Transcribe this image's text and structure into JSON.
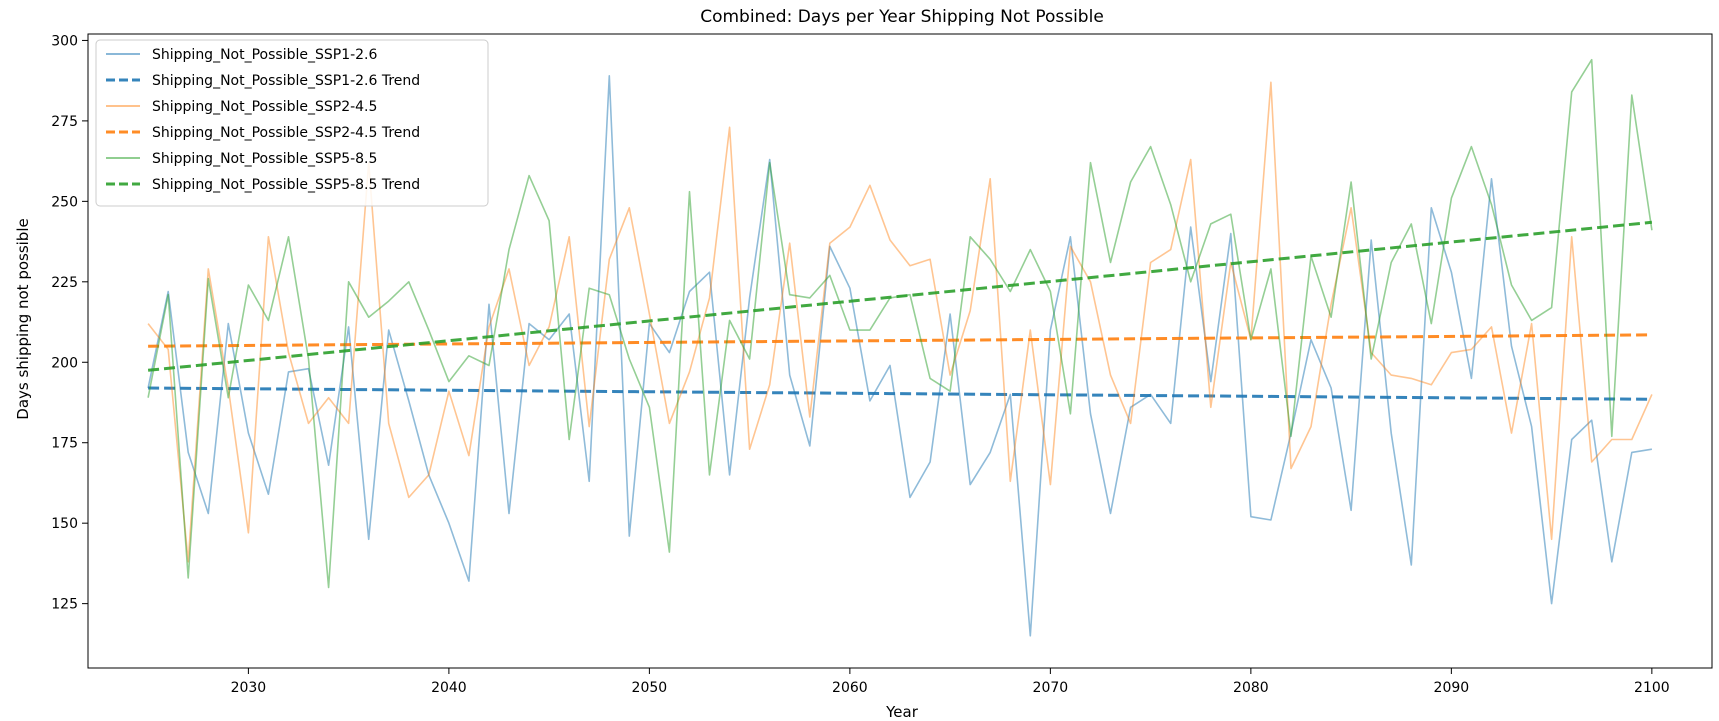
{
  "chart_data": {
    "type": "line",
    "title": "Combined: Days per Year Shipping Not Possible",
    "xlabel": "Year",
    "ylabel": "Days shipping not possible",
    "xlim": [
      2022,
      2103
    ],
    "ylim": [
      105,
      302
    ],
    "xticks": [
      2030,
      2040,
      2050,
      2060,
      2070,
      2080,
      2090,
      2100
    ],
    "yticks": [
      125,
      150,
      175,
      200,
      225,
      250,
      275,
      300
    ],
    "legend_position": "top-left",
    "grid": false,
    "series": [
      {
        "name": "Shipping_Not_Possible_SSP1-2.6",
        "color": "#1f77b4",
        "style": "solid",
        "opacity": 0.5,
        "x": [
          2025,
          2026,
          2027,
          2028,
          2029,
          2030,
          2031,
          2032,
          2033,
          2034,
          2035,
          2036,
          2037,
          2038,
          2039,
          2040,
          2041,
          2042,
          2043,
          2044,
          2045,
          2046,
          2047,
          2048,
          2049,
          2050,
          2051,
          2052,
          2053,
          2054,
          2055,
          2056,
          2057,
          2058,
          2059,
          2060,
          2061,
          2062,
          2063,
          2064,
          2065,
          2066,
          2067,
          2068,
          2069,
          2070,
          2071,
          2072,
          2073,
          2074,
          2075,
          2076,
          2077,
          2078,
          2079,
          2080,
          2081,
          2082,
          2083,
          2084,
          2085,
          2086,
          2087,
          2088,
          2089,
          2090,
          2091,
          2092,
          2093,
          2094,
          2095,
          2096,
          2097,
          2098,
          2099,
          2100
        ],
        "values": [
          192,
          222,
          172,
          153,
          212,
          178,
          159,
          197,
          198,
          168,
          211,
          145,
          210,
          188,
          165,
          150,
          132,
          218,
          153,
          212,
          207,
          215,
          163,
          289,
          146,
          212,
          203,
          222,
          228,
          165,
          220,
          263,
          196,
          174,
          236,
          223,
          188,
          199,
          158,
          169,
          215,
          162,
          172,
          190,
          115,
          210,
          239,
          184,
          153,
          186,
          190,
          181,
          242,
          194,
          240,
          152,
          151,
          178,
          207,
          192,
          154,
          238,
          178,
          137,
          248,
          228,
          195,
          257,
          205,
          180,
          125,
          176,
          182,
          138,
          172,
          173
        ]
      },
      {
        "name": "Shipping_Not_Possible_SSP1-2.6 Trend",
        "color": "#1f77b4",
        "style": "dashed",
        "opacity": 0.9,
        "x": [
          2025,
          2100
        ],
        "values": [
          192,
          188.5
        ]
      },
      {
        "name": "Shipping_Not_Possible_SSP2-4.5",
        "color": "#ff7f0e",
        "style": "solid",
        "opacity": 0.45,
        "x": [
          2025,
          2026,
          2027,
          2028,
          2029,
          2030,
          2031,
          2032,
          2033,
          2034,
          2035,
          2036,
          2037,
          2038,
          2039,
          2040,
          2041,
          2042,
          2043,
          2044,
          2045,
          2046,
          2047,
          2048,
          2049,
          2050,
          2051,
          2052,
          2053,
          2054,
          2055,
          2056,
          2057,
          2058,
          2059,
          2060,
          2061,
          2062,
          2063,
          2064,
          2065,
          2066,
          2067,
          2068,
          2069,
          2070,
          2071,
          2072,
          2073,
          2074,
          2075,
          2076,
          2077,
          2078,
          2079,
          2080,
          2081,
          2082,
          2083,
          2084,
          2085,
          2086,
          2087,
          2088,
          2089,
          2090,
          2091,
          2092,
          2093,
          2094,
          2095,
          2096,
          2097,
          2098,
          2099,
          2100
        ],
        "values": [
          212,
          204,
          138,
          229,
          192,
          147,
          239,
          203,
          181,
          189,
          181,
          262,
          181,
          158,
          165,
          191,
          171,
          211,
          229,
          199,
          211,
          239,
          180,
          232,
          248,
          215,
          181,
          197,
          220,
          273,
          173,
          193,
          237,
          183,
          237,
          242,
          255,
          238,
          230,
          232,
          196,
          216,
          257,
          163,
          210,
          162,
          236,
          225,
          196,
          181,
          231,
          235,
          263,
          186,
          231,
          207,
          287,
          167,
          180,
          218,
          248,
          203,
          196,
          195,
          193,
          203,
          204,
          211,
          178,
          212,
          145,
          239,
          169,
          176,
          176,
          190
        ]
      },
      {
        "name": "Shipping_Not_Possible_SSP2-4.5 Trend",
        "color": "#ff7f0e",
        "style": "dashed",
        "opacity": 0.9,
        "x": [
          2025,
          2100
        ],
        "values": [
          205,
          208.5
        ]
      },
      {
        "name": "Shipping_Not_Possible_SSP5-8.5",
        "color": "#2ca02c",
        "style": "solid",
        "opacity": 0.5,
        "x": [
          2025,
          2026,
          2027,
          2028,
          2029,
          2030,
          2031,
          2032,
          2033,
          2034,
          2035,
          2036,
          2037,
          2038,
          2039,
          2040,
          2041,
          2042,
          2043,
          2044,
          2045,
          2046,
          2047,
          2048,
          2049,
          2050,
          2051,
          2052,
          2053,
          2054,
          2055,
          2056,
          2057,
          2058,
          2059,
          2060,
          2061,
          2062,
          2063,
          2064,
          2065,
          2066,
          2067,
          2068,
          2069,
          2070,
          2071,
          2072,
          2073,
          2074,
          2075,
          2076,
          2077,
          2078,
          2079,
          2080,
          2081,
          2082,
          2083,
          2084,
          2085,
          2086,
          2087,
          2088,
          2089,
          2090,
          2091,
          2092,
          2093,
          2094,
          2095,
          2096,
          2097,
          2098,
          2099,
          2100
        ],
        "values": [
          189,
          221,
          133,
          226,
          189,
          224,
          213,
          239,
          201,
          130,
          225,
          214,
          219,
          225,
          210,
          194,
          202,
          199,
          235,
          258,
          244,
          176,
          223,
          221,
          201,
          186,
          141,
          253,
          165,
          213,
          201,
          262,
          221,
          220,
          227,
          210,
          210,
          220,
          221,
          195,
          191,
          239,
          232,
          222,
          235,
          222,
          184,
          262,
          231,
          256,
          267,
          249,
          225,
          243,
          246,
          207,
          229,
          177,
          233,
          214,
          256,
          201,
          231,
          243,
          212,
          251,
          267,
          249,
          224,
          213,
          217,
          284,
          294,
          177,
          283,
          241
        ]
      },
      {
        "name": "Shipping_Not_Possible_SSP5-8.5 Trend",
        "color": "#2ca02c",
        "style": "dashed",
        "opacity": 0.9,
        "x": [
          2025,
          2100
        ],
        "values": [
          197.5,
          243.5
        ]
      }
    ]
  }
}
